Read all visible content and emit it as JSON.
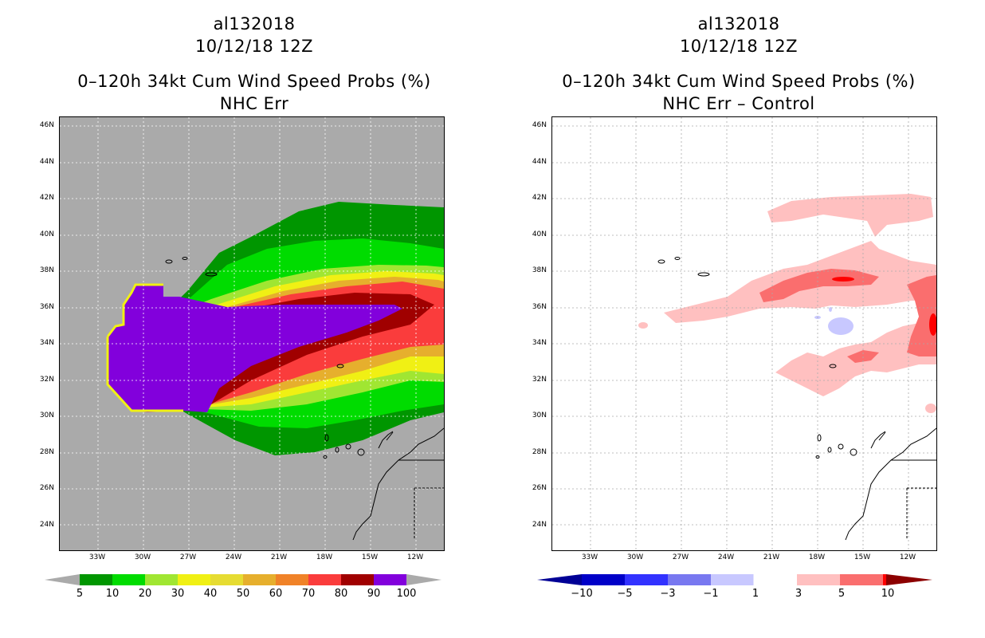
{
  "left_panel": {
    "storm_id": "al132018",
    "datetime": "10/12/18 12Z",
    "product": "0–120h 34kt Cum Wind Speed Probs (%)",
    "subtitle": "NHC Err",
    "lat_labels": [
      "46N",
      "44N",
      "42N",
      "40N",
      "38N",
      "36N",
      "34N",
      "32N",
      "30N",
      "28N",
      "26N",
      "24N"
    ],
    "lon_labels": [
      "33W",
      "30W",
      "27W",
      "24W",
      "21W",
      "18W",
      "15W",
      "12W"
    ],
    "colorbar": {
      "labels": [
        "5",
        "10",
        "20",
        "30",
        "40",
        "50",
        "60",
        "70",
        "80",
        "90",
        "100"
      ],
      "colors": [
        "#009600",
        "#00dc00",
        "#a0e632",
        "#f0f014",
        "#e6dc32",
        "#e6af2d",
        "#f08228",
        "#fa3c3c",
        "#a00000",
        "#8200dc"
      ],
      "end_color": "#aaaaaa"
    },
    "background_color": "#aaaaaa"
  },
  "right_panel": {
    "storm_id": "al132018",
    "datetime": "10/12/18 12Z",
    "product": "0–120h 34kt Cum Wind Speed Probs (%)",
    "subtitle": "NHC Err – Control",
    "lat_labels": [
      "46N",
      "44N",
      "42N",
      "40N",
      "38N",
      "36N",
      "34N",
      "32N",
      "30N",
      "28N",
      "26N",
      "24N"
    ],
    "lon_labels": [
      "33W",
      "30W",
      "27W",
      "24W",
      "21W",
      "18W",
      "15W",
      "12W"
    ],
    "colorbar": {
      "labels": [
        "−10",
        "−5",
        "−3",
        "−1",
        "1",
        "3",
        "5",
        "10"
      ],
      "colors": [
        "#0000c8",
        "#3232ff",
        "#7878f0",
        "#c8c8ff",
        "#ffffff",
        "#ffc0c0",
        "#fa6e6e",
        "#ff0000"
      ],
      "low_end_color": "#000096",
      "high_end_color": "#8c0000"
    },
    "background_color": "#ffffff"
  }
}
